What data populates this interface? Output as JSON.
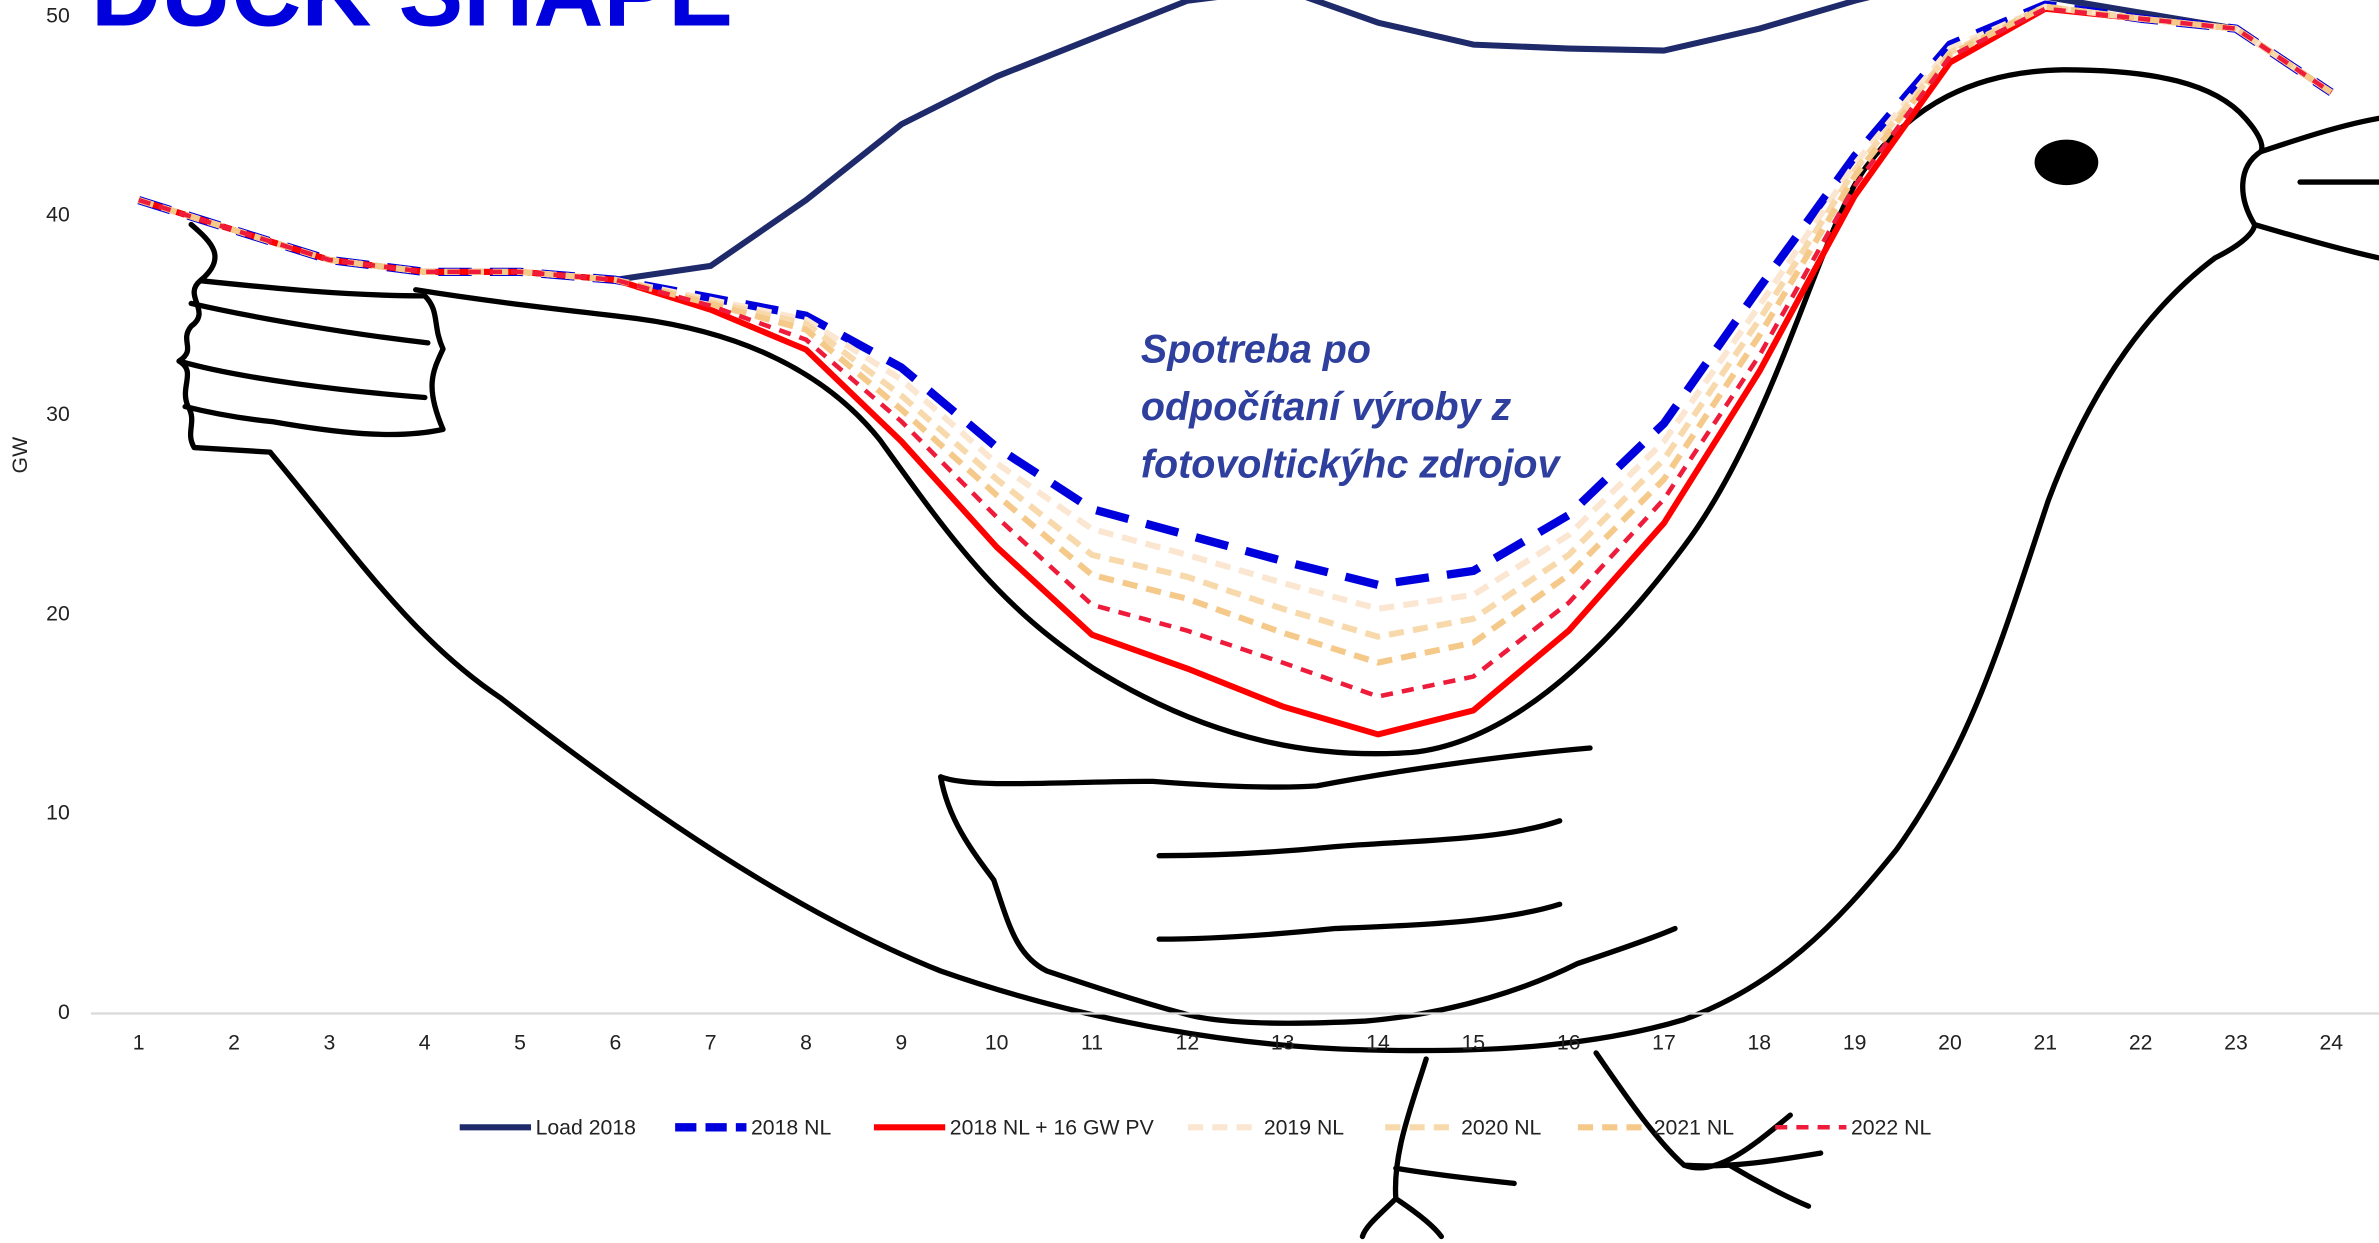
{
  "chart_data": {
    "type": "line",
    "title": "DUCK SHAPE",
    "annotation": [
      "Spotreba po",
      "odpočítaní výroby z",
      "fotovoltickýhc zdrojov"
    ],
    "y_label": "GW",
    "categories": [
      1,
      2,
      3,
      4,
      5,
      6,
      7,
      8,
      9,
      10,
      11,
      12,
      13,
      14,
      15,
      16,
      17,
      18,
      19,
      20,
      21,
      22,
      23,
      24
    ],
    "ylim": [
      0,
      50
    ],
    "yticks": [
      0,
      10,
      20,
      30,
      40,
      50
    ],
    "grid": false,
    "legend": "bottom",
    "series": [
      {
        "name": "Load 2018",
        "color": "#1f2a6b",
        "dash": false,
        "values": [
          40.8,
          39.3,
          37.8,
          37.2,
          37.2,
          36.8,
          37.5,
          40.8,
          44.6,
          47.0,
          48.9,
          50.8,
          51.4,
          49.7,
          48.6,
          48.4,
          48.3,
          49.4,
          50.8,
          52.0,
          51.0,
          50.2,
          49.4,
          46.2
        ]
      },
      {
        "name": "2018 NL",
        "color": "#0000dd",
        "dash": true,
        "values": [
          40.8,
          39.3,
          37.8,
          37.2,
          37.2,
          36.8,
          35.9,
          35.0,
          32.4,
          28.4,
          25.3,
          24.0,
          22.7,
          21.5,
          22.2,
          25.0,
          29.6,
          36.4,
          43.0,
          48.6,
          50.6,
          49.9,
          49.4,
          46.2
        ]
      },
      {
        "name": "2018 NL + 16 GW PV",
        "color": "#ff0000",
        "dash": false,
        "values": [
          40.8,
          39.3,
          37.8,
          37.2,
          37.2,
          36.8,
          35.3,
          33.3,
          28.7,
          23.4,
          19.0,
          17.3,
          15.4,
          14.0,
          15.2,
          19.2,
          24.6,
          32.2,
          41.0,
          47.7,
          50.4,
          49.9,
          49.4,
          46.2
        ]
      },
      {
        "name": "2019 NL",
        "color": "#fbe6d2",
        "dash": true,
        "values": [
          40.8,
          39.3,
          37.8,
          37.2,
          37.2,
          36.8,
          35.8,
          34.8,
          31.8,
          27.6,
          24.3,
          23.0,
          21.6,
          20.3,
          21.0,
          24.0,
          28.7,
          35.5,
          42.6,
          48.4,
          50.5,
          49.9,
          49.4,
          46.2
        ]
      },
      {
        "name": "2020 NL",
        "color": "#f8d9ac",
        "dash": true,
        "values": [
          40.8,
          39.3,
          37.8,
          37.2,
          37.2,
          36.8,
          35.7,
          34.6,
          31.0,
          26.8,
          23.0,
          21.9,
          20.3,
          18.9,
          19.8,
          23.0,
          27.8,
          34.8,
          42.3,
          48.2,
          50.5,
          49.9,
          49.4,
          46.2
        ]
      },
      {
        "name": "2021 NL",
        "color": "#f5c98a",
        "dash": true,
        "values": [
          40.8,
          39.3,
          37.8,
          37.2,
          37.2,
          36.8,
          35.6,
          34.3,
          30.3,
          26.0,
          22.0,
          20.8,
          19.1,
          17.6,
          18.6,
          22.0,
          26.8,
          34.0,
          42.0,
          48.1,
          50.5,
          49.9,
          49.4,
          46.2
        ]
      },
      {
        "name": "2022 NL",
        "color": "#ee1c3a",
        "dash": true,
        "values": [
          40.8,
          39.3,
          37.8,
          37.2,
          37.2,
          36.8,
          35.5,
          33.8,
          29.7,
          24.9,
          20.5,
          19.2,
          17.6,
          15.9,
          16.9,
          20.6,
          25.8,
          33.0,
          41.5,
          48.0,
          50.4,
          49.9,
          49.4,
          46.2
        ]
      }
    ]
  }
}
